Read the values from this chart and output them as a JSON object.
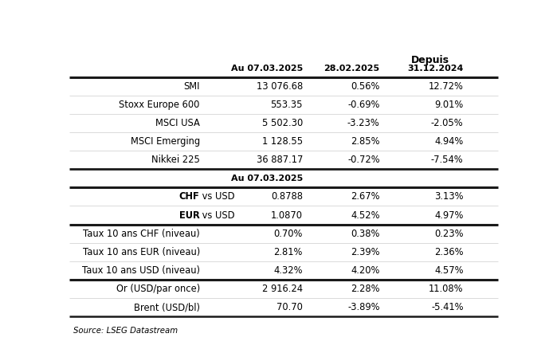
{
  "title_depuis": "Depuis",
  "col_headers": [
    "Au 07.03.2025",
    "28.02.2025",
    "31.12.2024"
  ],
  "col_sub_header": "Au 07.03.2025",
  "section1_rows": [
    [
      "SMI",
      "13 076.68",
      "0.56%",
      "12.72%"
    ],
    [
      "Stoxx Europe 600",
      "553.35",
      "-0.69%",
      "9.01%"
    ],
    [
      "MSCI USA",
      "5 502.30",
      "-3.23%",
      "-2.05%"
    ],
    [
      "MSCI Emerging",
      "1 128.55",
      "2.85%",
      "4.94%"
    ],
    [
      "Nikkei 225",
      "36 887.17",
      "-0.72%",
      "-7.54%"
    ]
  ],
  "section2_rows_bold": [
    [
      "CHF",
      "vs USD",
      "0.8788",
      "2.67%",
      "3.13%"
    ],
    [
      "EUR",
      "vs USD",
      "1.0870",
      "4.52%",
      "4.97%"
    ]
  ],
  "section3_rows": [
    [
      "Taux 10 ans CHF (niveau)",
      "0.70%",
      "0.38%",
      "0.23%"
    ],
    [
      "Taux 10 ans EUR (niveau)",
      "2.81%",
      "2.39%",
      "2.36%"
    ],
    [
      "Taux 10 ans USD (niveau)",
      "4.32%",
      "4.20%",
      "4.57%"
    ]
  ],
  "section4_rows": [
    [
      "Or (USD/par once)",
      "2 916.24",
      "2.28%",
      "11.08%"
    ],
    [
      "Brent (USD/bl)",
      "70.70",
      "-3.89%",
      "-5.41%"
    ]
  ],
  "source": "Source: LSEG Datastream",
  "bg_color": "#ffffff",
  "text_color": "#000000",
  "thick_line_color": "#1a1a1a",
  "thin_line_color": "#cccccc"
}
